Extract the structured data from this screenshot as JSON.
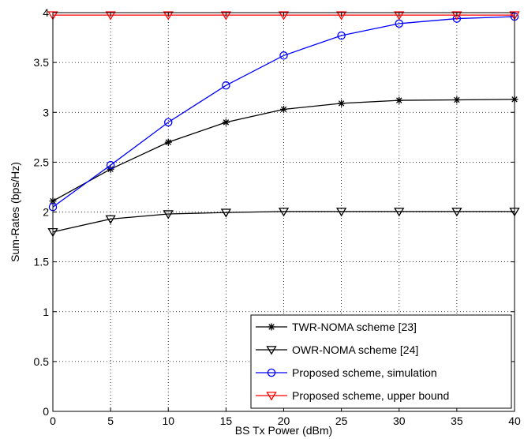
{
  "chart_data": {
    "type": "line",
    "xlabel": "BS Tx Power (dBm)",
    "ylabel": "Sum-Rates (bps/Hz)",
    "xlim": [
      0,
      40
    ],
    "ylim": [
      0,
      4
    ],
    "xticks": [
      0,
      5,
      10,
      15,
      20,
      25,
      30,
      35,
      40
    ],
    "yticks": [
      0,
      0.5,
      1,
      1.5,
      2,
      2.5,
      3,
      3.5,
      4
    ],
    "ytick_labels": [
      "0",
      "0.5",
      "1",
      "1.5",
      "2",
      "2.5",
      "3",
      "3.5",
      "4"
    ],
    "grid": true,
    "legend_position": "bottom-right",
    "x": [
      0,
      5,
      10,
      15,
      20,
      25,
      30,
      35,
      40
    ],
    "series": [
      {
        "name": "TWR-NOMA scheme [23]",
        "color": "#000000",
        "marker": "asterisk",
        "values": [
          2.11,
          2.43,
          2.7,
          2.9,
          3.03,
          3.09,
          3.12,
          3.125,
          3.13
        ]
      },
      {
        "name": "OWR-NOMA scheme [24]",
        "color": "#000000",
        "marker": "triangle-down",
        "values": [
          1.8,
          1.93,
          1.98,
          1.995,
          2.005,
          2.005,
          2.005,
          2.005,
          2.005
        ]
      },
      {
        "name": "Proposed scheme, simulation",
        "color": "#0000ff",
        "marker": "circle",
        "values": [
          2.05,
          2.47,
          2.9,
          3.27,
          3.57,
          3.77,
          3.89,
          3.94,
          3.96
        ]
      },
      {
        "name": "Proposed scheme, upper bound",
        "color": "#ff0000",
        "marker": "triangle-down",
        "values": [
          3.975,
          3.975,
          3.975,
          3.975,
          3.975,
          3.975,
          3.975,
          3.975,
          3.975
        ]
      }
    ]
  }
}
